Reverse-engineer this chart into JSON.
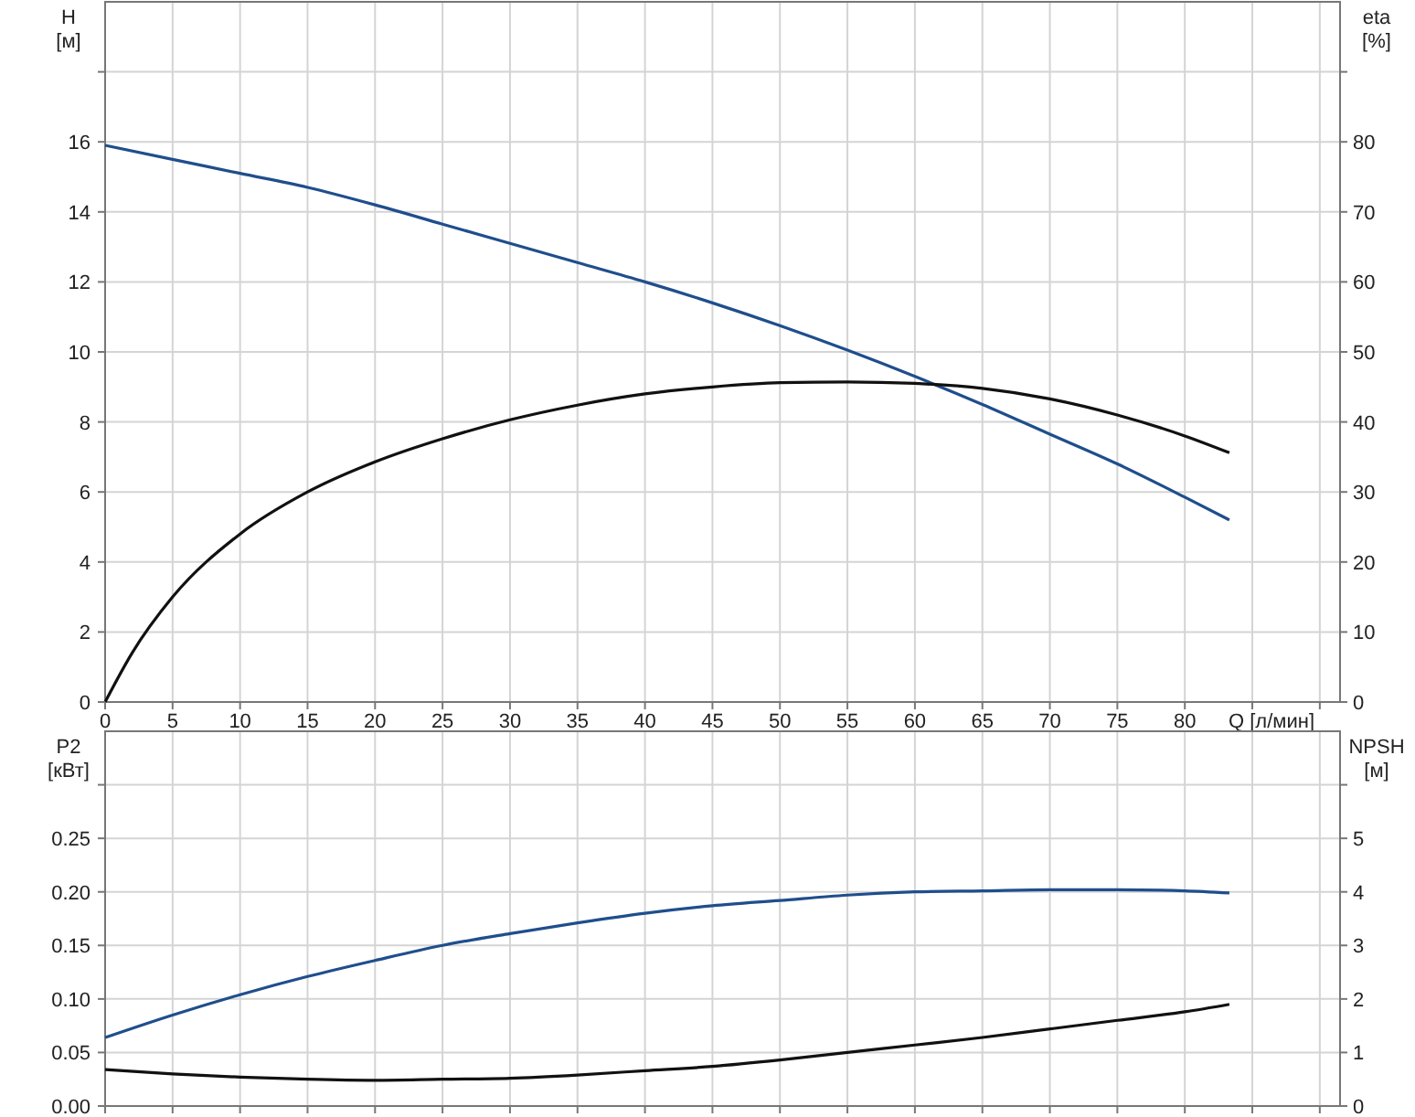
{
  "chart_data": [
    {
      "type": "line",
      "xlabel": "Q [л/мин]",
      "ylabel": "H [м]",
      "y2label": "eta [%]",
      "x": [
        0,
        5,
        10,
        15,
        20,
        25,
        30,
        35,
        40,
        45,
        50,
        55,
        60,
        65,
        70,
        75,
        80,
        83.3
      ],
      "xlim": [
        0,
        91.5
      ],
      "xticks": [
        0,
        5,
        10,
        15,
        20,
        25,
        30,
        35,
        40,
        45,
        50,
        55,
        60,
        65,
        70,
        75,
        80,
        {
          "value": 85,
          "label": null
        },
        {
          "value": 90,
          "label": null
        }
      ],
      "ylim": [
        0,
        20
      ],
      "yticks": [
        0,
        2,
        4,
        6,
        8,
        10,
        12,
        14,
        16,
        {
          "value": 18,
          "label": null
        }
      ],
      "y2lim": [
        0,
        100
      ],
      "y2ticks": [
        0,
        10,
        20,
        30,
        40,
        50,
        60,
        70,
        80,
        {
          "value": 90,
          "label": null
        }
      ],
      "grid": true,
      "series": [
        {
          "color": "#1f4e8c",
          "values": [
            15.9,
            15.5,
            15.1,
            14.7,
            14.2,
            13.65,
            13.1,
            12.55,
            12.0,
            11.4,
            10.75,
            10.05,
            9.3,
            8.5,
            7.65,
            6.8,
            5.85,
            5.2
          ]
        },
        {
          "color": "#111111",
          "axis": "y2",
          "x": [
            0,
            2,
            5,
            10,
            15,
            20,
            25,
            30,
            35,
            40,
            45,
            50,
            55,
            60,
            65,
            70,
            75,
            80,
            83.3
          ],
          "values": [
            0,
            7,
            15,
            24,
            30,
            34.3,
            37.6,
            40.3,
            42.4,
            44,
            45,
            45.6,
            45.7,
            45.5,
            44.8,
            43.3,
            41,
            38,
            35.6
          ]
        }
      ]
    },
    {
      "type": "line",
      "ylabel": "P2 [кВт]",
      "y2label": "NPSH [м]",
      "tick_labels": "y",
      "x": [
        0,
        5,
        10,
        15,
        20,
        25,
        30,
        35,
        40,
        45,
        50,
        55,
        60,
        65,
        70,
        75,
        80,
        83.3
      ],
      "xlim": [
        0,
        91.5
      ],
      "xticks": [
        0,
        5,
        10,
        15,
        20,
        25,
        30,
        35,
        40,
        45,
        50,
        55,
        60,
        65,
        70,
        75,
        80,
        85,
        90
      ],
      "ylim": [
        0,
        0.35
      ],
      "yticks": [
        {
          "value": 0,
          "label": "0.00"
        },
        0.05,
        {
          "value": 0.1,
          "label": "0.10"
        },
        0.15,
        {
          "value": 0.2,
          "label": "0.20"
        },
        0.25,
        {
          "value": 0.3,
          "label": null
        }
      ],
      "y2lim": [
        0,
        7
      ],
      "y2ticks": [
        0,
        1,
        2,
        3,
        4,
        5,
        {
          "value": 6,
          "label": null
        }
      ],
      "grid": true,
      "series": [
        {
          "color": "#1f4e8c",
          "values": [
            0.064,
            0.085,
            0.104,
            0.121,
            0.136,
            0.15,
            0.161,
            0.171,
            0.18,
            0.187,
            0.192,
            0.197,
            0.2,
            0.201,
            0.202,
            0.202,
            0.201,
            0.199
          ]
        },
        {
          "color": "#111111",
          "axis": "y2",
          "values": [
            0.68,
            0.6,
            0.54,
            0.5,
            0.48,
            0.5,
            0.52,
            0.58,
            0.66,
            0.74,
            0.86,
            1.0,
            1.14,
            1.28,
            1.44,
            1.6,
            1.76,
            1.9
          ]
        }
      ]
    }
  ]
}
